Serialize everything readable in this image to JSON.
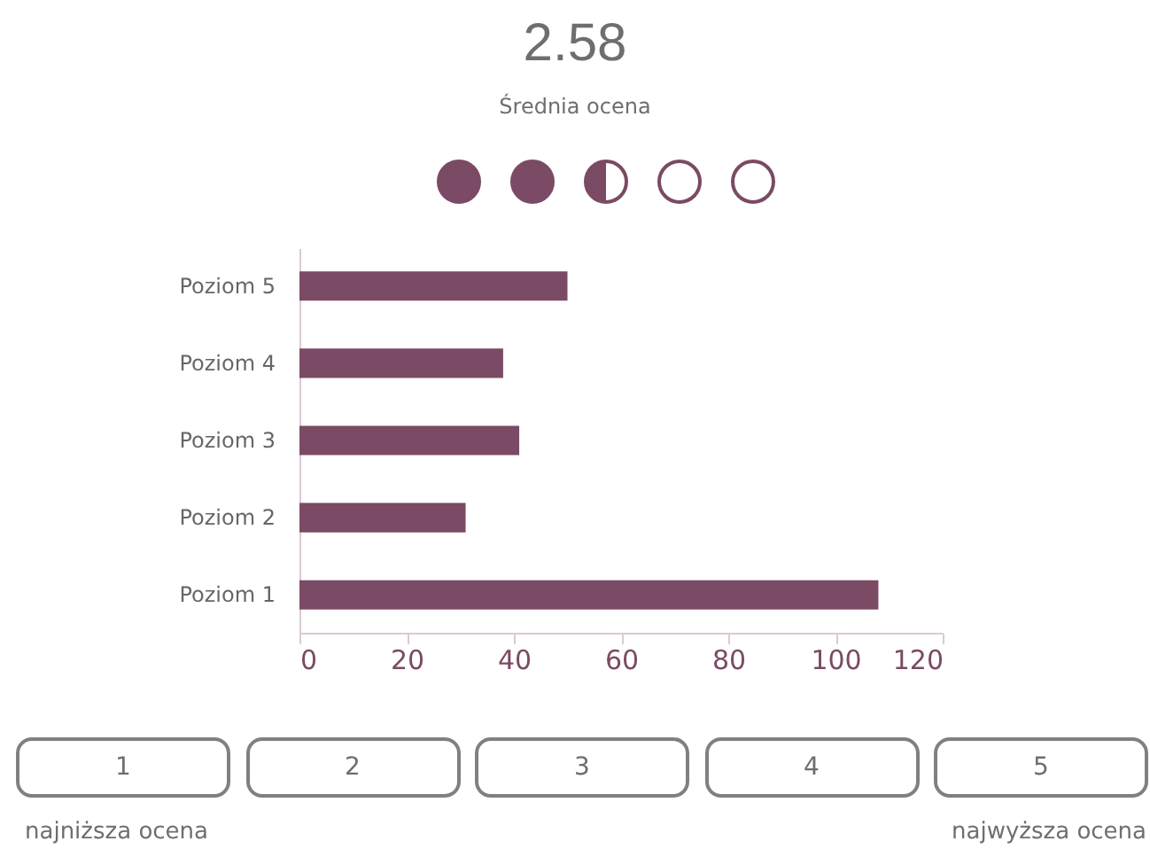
{
  "chart_data": {
    "type": "bar",
    "orientation": "horizontal",
    "title": "2.58",
    "subtitle": "Średnia ocena",
    "categories": [
      "Poziom 5",
      "Poziom 4",
      "Poziom 3",
      "Poziom 2",
      "Poziom 1"
    ],
    "values": [
      50,
      38,
      41,
      31,
      108
    ],
    "color": "#7b4a64",
    "xlim": [
      0,
      120
    ],
    "xticks": [
      0,
      20,
      40,
      60,
      80,
      100,
      120
    ],
    "grid": false,
    "annotations": [
      "1",
      "2",
      "3",
      "4",
      "5",
      "najniższa ocena",
      "najwyższa ocena"
    ]
  }
}
